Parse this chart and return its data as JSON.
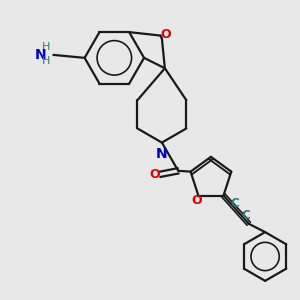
{
  "bg_color": "#e8e8e8",
  "bond_color": "#1a1a1a",
  "oxygen_color": "#dd0000",
  "nitrogen_color": "#0000cc",
  "carbon_label_color": "#2a7a7a",
  "figsize": [
    3.0,
    3.0
  ],
  "dpi": 100,
  "xlim": [
    0,
    10
  ],
  "ylim": [
    0,
    10
  ]
}
